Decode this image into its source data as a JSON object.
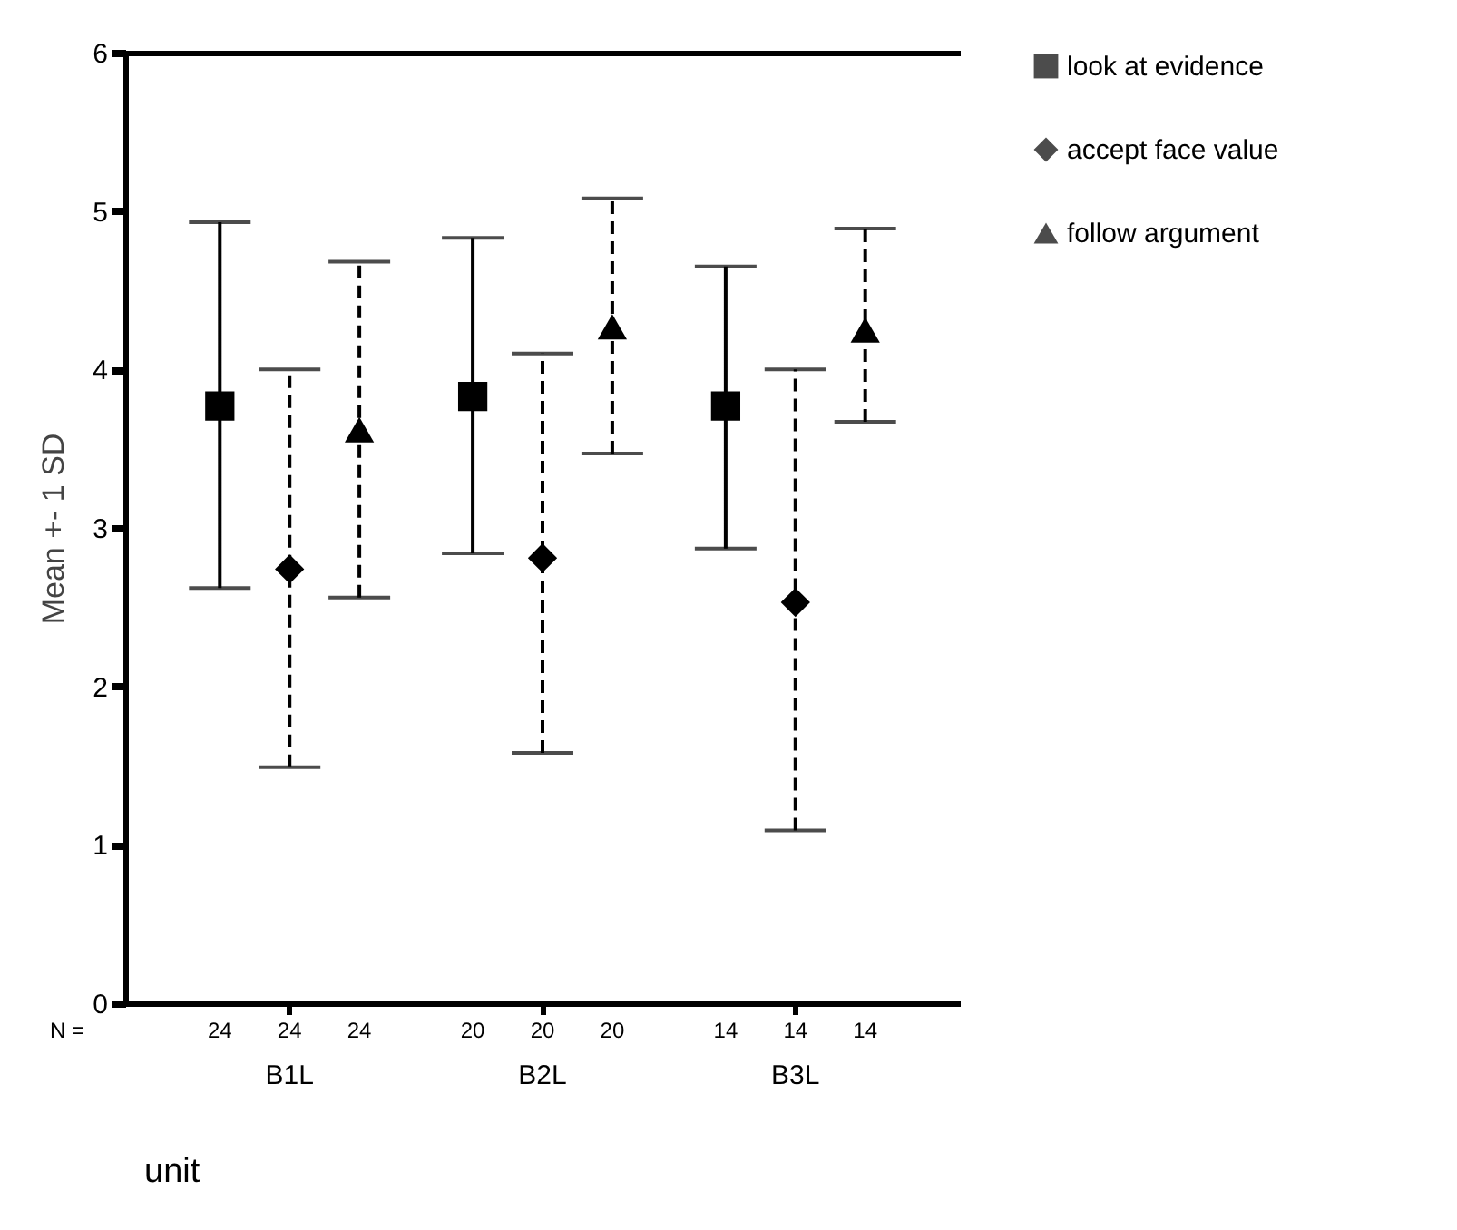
{
  "chart_data": {
    "type": "scatter",
    "xlabel": "unit",
    "ylabel": "Mean +- 1 SD",
    "categories": [
      "B1L",
      "B2L",
      "B3L"
    ],
    "series": [
      {
        "name": "look at evidence",
        "color": "#000000",
        "marker": "square",
        "line_style": "solid",
        "values": [
          3.77,
          3.83,
          3.77
        ],
        "errors": [
          [
            2.62,
            4.93
          ],
          [
            2.84,
            4.83
          ],
          [
            2.87,
            4.65
          ]
        ]
      },
      {
        "name": "accept face value",
        "color": "#000000",
        "marker": "diamond",
        "line_style": "dashed",
        "values": [
          2.74,
          2.81,
          2.53
        ],
        "errors": [
          [
            1.49,
            4.0
          ],
          [
            1.58,
            4.1
          ],
          [
            1.09,
            4.0
          ]
        ]
      },
      {
        "name": "follow argument",
        "color": "#000000",
        "marker": "triangle",
        "line_style": "dashed",
        "values": [
          3.62,
          4.27,
          4.25
        ],
        "errors": [
          [
            2.56,
            4.68
          ],
          [
            3.47,
            5.08
          ],
          [
            3.67,
            4.89
          ]
        ]
      }
    ],
    "ylim": [
      0,
      6
    ],
    "yticks": [
      0,
      1,
      2,
      3,
      4,
      5,
      6
    ],
    "grid": false,
    "legend": "right",
    "annotations": [
      "N =",
      "24",
      "24",
      "24",
      "20",
      "20",
      "20",
      "14",
      "14",
      "14"
    ]
  }
}
